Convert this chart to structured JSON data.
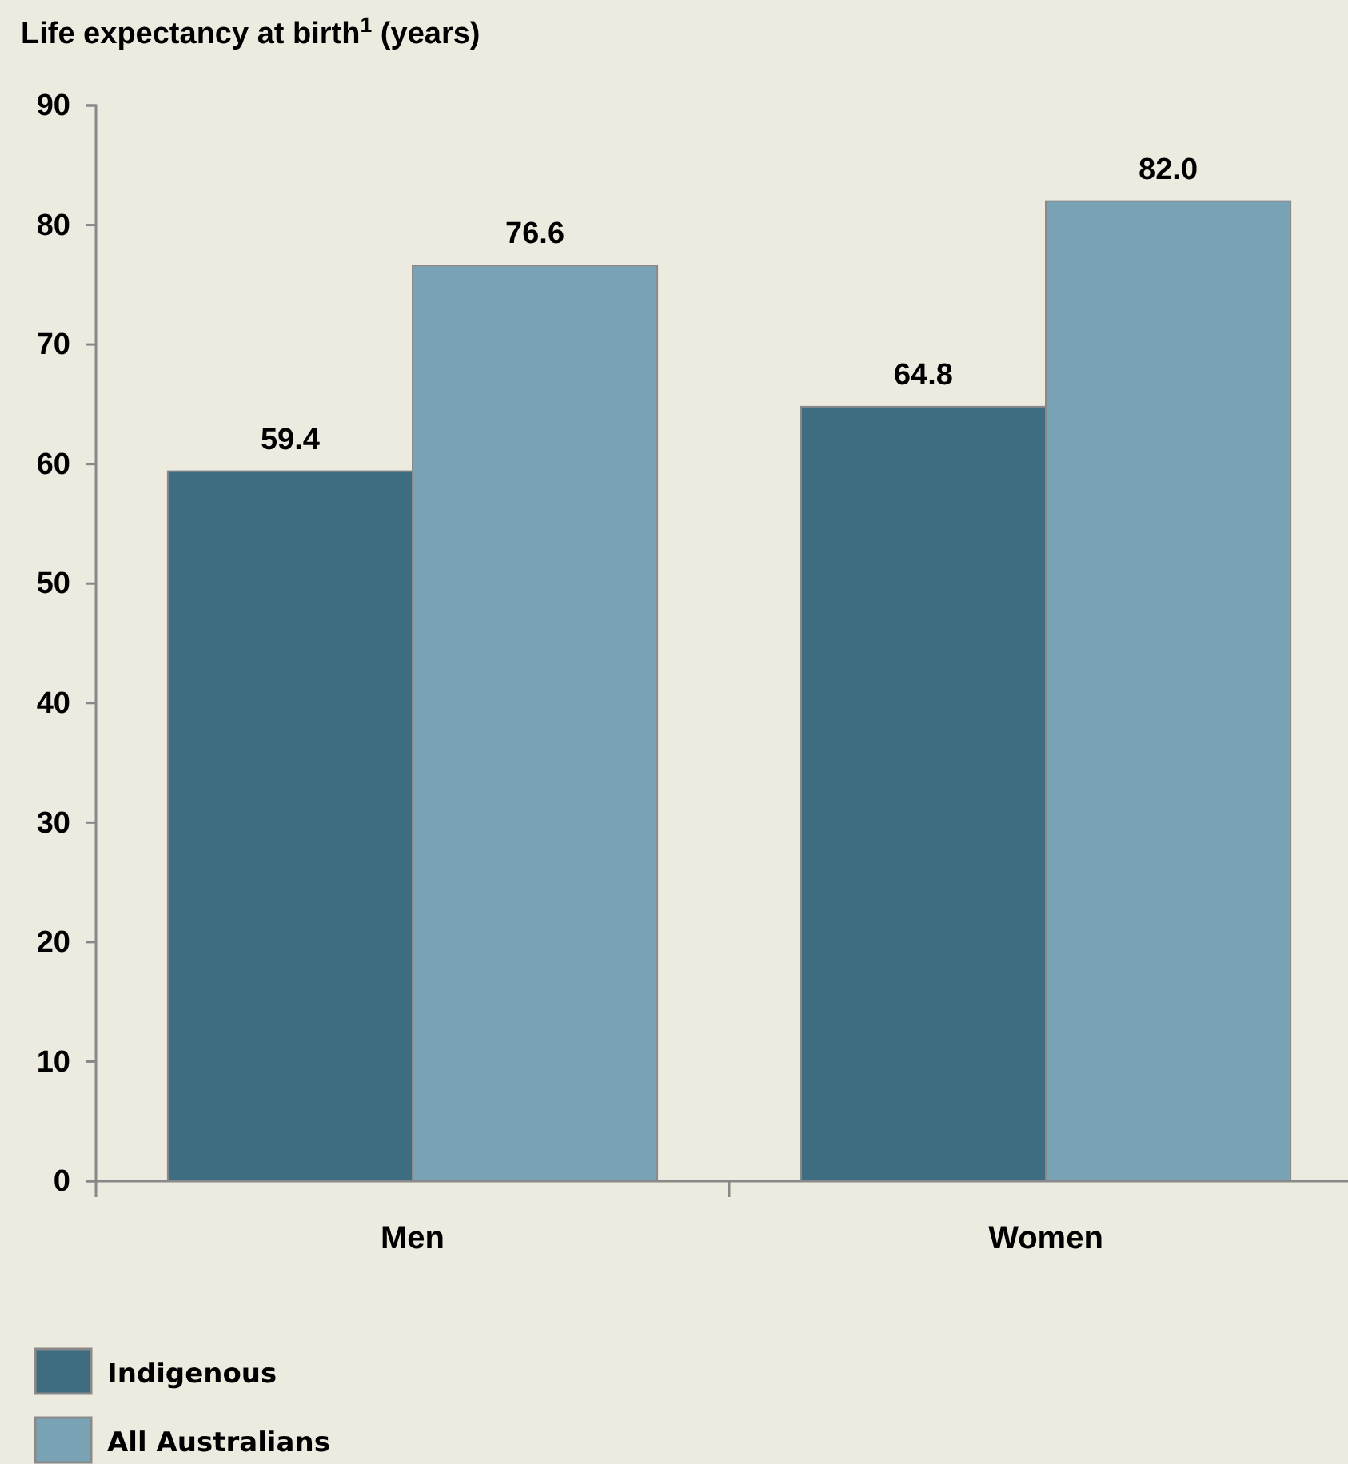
{
  "chart_data": {
    "type": "bar",
    "title": "Life expectancy at birth$^{1}$ (years)",
    "categories": [
      "Men",
      "Women"
    ],
    "series": [
      {
        "name": "Indigenous",
        "color": "#3e6d82",
        "values": [
          59.4,
          64.8
        ],
        "value_labels": [
          "59.4",
          "64.8"
        ]
      },
      {
        "name": "All Australians",
        "color": "#79a3b4",
        "values": [
          76.6,
          82.0
        ],
        "value_labels": [
          "76.6",
          "82.0"
        ]
      }
    ],
    "ylim": [
      0,
      90
    ],
    "yticks": [
      0,
      10,
      20,
      30,
      40,
      50,
      60,
      70,
      80,
      90
    ],
    "grid": false,
    "legend": "bottom left"
  }
}
